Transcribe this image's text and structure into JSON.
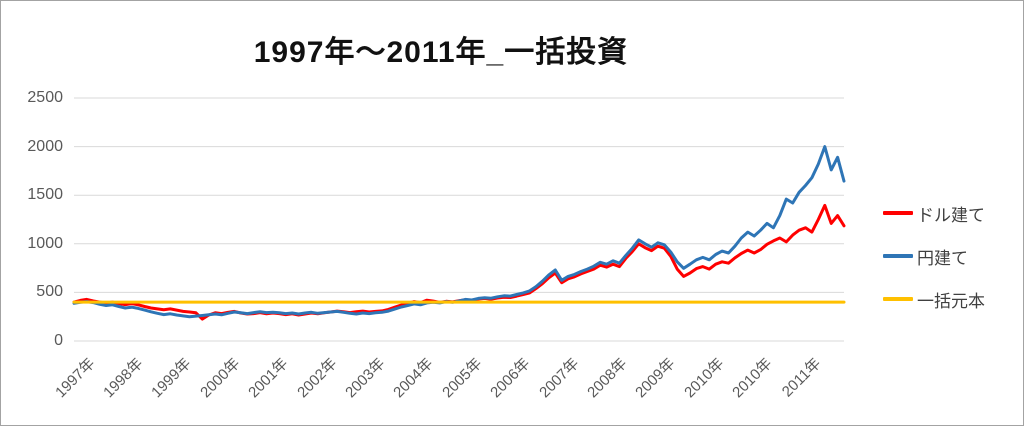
{
  "chart_data": {
    "type": "line",
    "title": "1997年〜2011年_一括投資",
    "xlabel": "",
    "ylabel": "",
    "grid": "horizontal",
    "grid_color": "#d9d9d9",
    "axis_text_color": "#595959",
    "legend_position": "right",
    "ylim": [
      0,
      2500
    ],
    "y_ticks": [
      0,
      500,
      1000,
      1500,
      2000,
      2500
    ],
    "xlim": [
      1997,
      2012
    ],
    "x_tick_labels": [
      "1997年",
      "1998年",
      "1999年",
      "2000年",
      "2001年",
      "2002年",
      "2003年",
      "2004年",
      "2005年",
      "2006年",
      "2007年",
      "2008年",
      "2009年",
      "2010年",
      "2010年",
      "2011年"
    ],
    "x_start": 1997.0,
    "x_step": 0.125,
    "series": [
      {
        "name": "ドル建て",
        "color": "#ff0000",
        "values": [
          400,
          418,
          428,
          412,
          400,
          390,
          400,
          385,
          375,
          385,
          372,
          355,
          340,
          330,
          322,
          330,
          318,
          305,
          298,
          290,
          225,
          268,
          290,
          282,
          295,
          305,
          288,
          278,
          282,
          292,
          280,
          288,
          282,
          272,
          280,
          268,
          278,
          288,
          280,
          290,
          298,
          308,
          300,
          292,
          300,
          308,
          298,
          305,
          310,
          325,
          348,
          370,
          388,
          405,
          395,
          420,
          410,
          398,
          408,
          402,
          415,
          425,
          418,
          432,
          438,
          430,
          442,
          450,
          448,
          462,
          478,
          495,
          540,
          590,
          650,
          700,
          600,
          640,
          660,
          690,
          715,
          740,
          780,
          760,
          790,
          765,
          850,
          920,
          1000,
          960,
          930,
          975,
          955,
          870,
          740,
          665,
          700,
          745,
          765,
          740,
          790,
          815,
          800,
          855,
          900,
          935,
          905,
          940,
          995,
          1030,
          1060,
          1020,
          1090,
          1140,
          1165,
          1120,
          1250,
          1395,
          1210,
          1290,
          1185
        ]
      },
      {
        "name": "円建て",
        "color": "#2e75b6",
        "values": [
          388,
          398,
          405,
          395,
          378,
          365,
          372,
          355,
          340,
          348,
          335,
          318,
          300,
          285,
          272,
          280,
          268,
          258,
          250,
          256,
          262,
          270,
          278,
          270,
          285,
          298,
          290,
          282,
          292,
          300,
          292,
          296,
          290,
          282,
          288,
          278,
          288,
          295,
          285,
          292,
          298,
          305,
          295,
          285,
          278,
          288,
          282,
          290,
          295,
          308,
          328,
          350,
          365,
          382,
          372,
          392,
          398,
          392,
          405,
          398,
          412,
          428,
          422,
          438,
          445,
          440,
          455,
          465,
          462,
          478,
          495,
          515,
          560,
          615,
          680,
          730,
          625,
          665,
          685,
          715,
          740,
          770,
          810,
          790,
          825,
          800,
          880,
          955,
          1040,
          1000,
          965,
          1010,
          990,
          915,
          815,
          748,
          790,
          835,
          860,
          835,
          890,
          925,
          905,
          975,
          1060,
          1120,
          1080,
          1140,
          1210,
          1165,
          1290,
          1460,
          1420,
          1530,
          1600,
          1680,
          1820,
          2000,
          1760,
          1890,
          1645
        ]
      },
      {
        "name": "一括元本",
        "color": "#ffc000",
        "constant": 400
      }
    ]
  },
  "legend": {
    "items": [
      {
        "label": "ドル建て",
        "color": "#ff0000"
      },
      {
        "label": "円建て",
        "color": "#2e75b6"
      },
      {
        "label": "一括元本",
        "color": "#ffc000"
      }
    ]
  }
}
